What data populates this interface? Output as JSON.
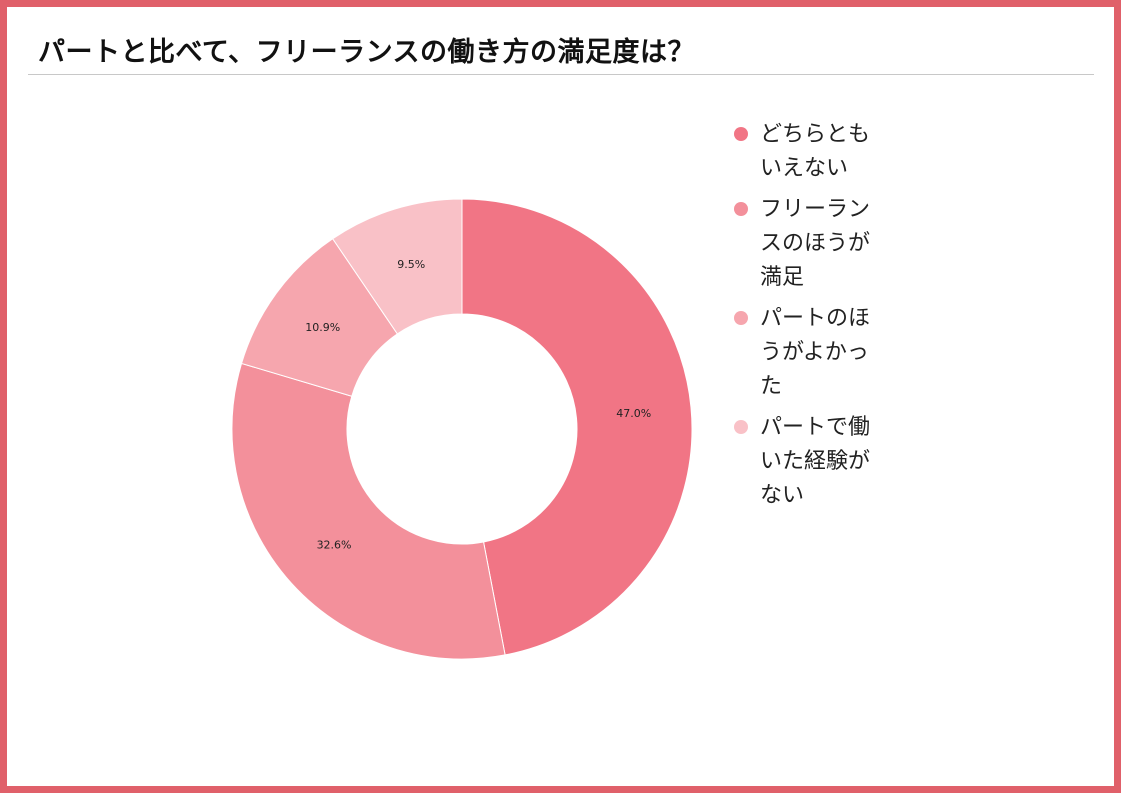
{
  "title": "パートと比べて、フリーランスの働き方の満足度は？",
  "colors": {
    "border": "#e0606a",
    "slices": [
      "#f17585",
      "#f3909b",
      "#f6a6ae",
      "#f9c1c7"
    ]
  },
  "chart_data": {
    "type": "pie",
    "variant": "donut",
    "title": "パートと比べて、フリーランスの働き方の満足度は？",
    "start_angle_deg": 0,
    "direction": "clockwise",
    "legend_position": "right",
    "slices": [
      {
        "label": "どちらともいえない",
        "value": 47.0,
        "display": "47.0%"
      },
      {
        "label": "フリーランスのほうが満足",
        "value": 32.6,
        "display": "32.6%"
      },
      {
        "label": "パートのほうがよかった",
        "value": 10.9,
        "display": "10.9%"
      },
      {
        "label": "パートで働いた経験がない",
        "value": 9.5,
        "display": "9.5%"
      }
    ]
  }
}
